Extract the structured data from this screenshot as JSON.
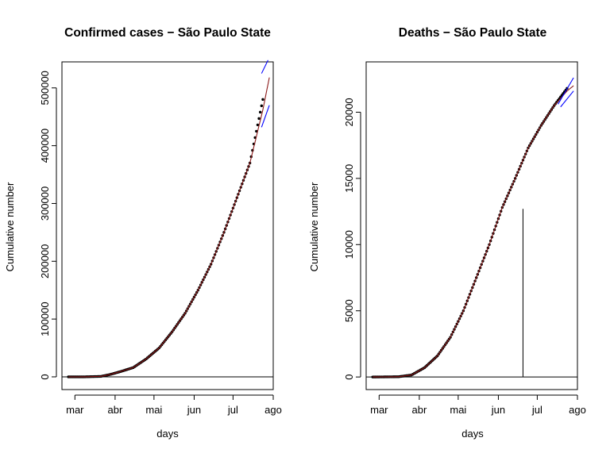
{
  "colors": {
    "observed": "#000000",
    "fit": "#8b1a1a",
    "band": "#0000ff",
    "axis": "#000000"
  },
  "chart_data": [
    {
      "id": "cases",
      "type": "scatter",
      "title": "Confirmed cases − São Paulo State",
      "xlabel": "days",
      "ylabel": "Cumulative number",
      "x_ticks": [
        "mar",
        "abr",
        "mai",
        "jun",
        "jul",
        "ago"
      ],
      "xlim": [
        -5,
        158
      ],
      "y_ticks": [
        "0",
        "100000",
        "200000",
        "300000",
        "400000",
        "500000"
      ],
      "y_tick_values": [
        0,
        100000,
        200000,
        300000,
        400000,
        500000
      ],
      "ylim": [
        -22000,
        545000
      ],
      "observed": {
        "day_start": 0,
        "day_end": 150,
        "values": [
          [
            0,
            1
          ],
          [
            12,
            50
          ],
          [
            25,
            800
          ],
          [
            32,
            4000
          ],
          [
            40,
            9000
          ],
          [
            50,
            16000
          ],
          [
            60,
            31000
          ],
          [
            70,
            50000
          ],
          [
            80,
            78000
          ],
          [
            90,
            110000
          ],
          [
            100,
            150000
          ],
          [
            110,
            195000
          ],
          [
            120,
            250000
          ],
          [
            130,
            310000
          ],
          [
            140,
            370000
          ],
          [
            150,
            480000
          ]
        ]
      },
      "fit": {
        "start": 0,
        "end": 155,
        "values": [
          [
            0,
            1
          ],
          [
            12,
            50
          ],
          [
            25,
            800
          ],
          [
            32,
            4000
          ],
          [
            40,
            9000
          ],
          [
            50,
            16000
          ],
          [
            60,
            31000
          ],
          [
            70,
            50000
          ],
          [
            80,
            78000
          ],
          [
            90,
            110000
          ],
          [
            100,
            150000
          ],
          [
            110,
            195000
          ],
          [
            120,
            250000
          ],
          [
            130,
            310000
          ],
          [
            140,
            370000
          ],
          [
            150,
            462000
          ],
          [
            155,
            518000
          ]
        ]
      },
      "upper_band": {
        "start": 149,
        "end": 154,
        "y0": 525000,
        "y1": 548000
      },
      "lower_band": {
        "start": 149,
        "end": 155,
        "y0": 432000,
        "y1": 470000
      },
      "reference_line": null,
      "grid": false
    },
    {
      "id": "deaths",
      "type": "scatter",
      "title": "Deaths − São Paulo State",
      "xlabel": "days",
      "ylabel": "Cumulative number",
      "x_ticks": [
        "mar",
        "abr",
        "mai",
        "jun",
        "jul",
        "ago"
      ],
      "xlim": [
        -5,
        158
      ],
      "y_ticks": [
        "0",
        "5000",
        "10000",
        "15000",
        "20000"
      ],
      "y_tick_values": [
        0,
        5000,
        10000,
        15000,
        20000
      ],
      "ylim": [
        -950,
        23800
      ],
      "observed": {
        "day_start": 0,
        "day_end": 150,
        "values": [
          [
            0,
            0
          ],
          [
            20,
            20
          ],
          [
            30,
            150
          ],
          [
            40,
            700
          ],
          [
            50,
            1600
          ],
          [
            60,
            3000
          ],
          [
            70,
            5000
          ],
          [
            80,
            7500
          ],
          [
            90,
            10000
          ],
          [
            100,
            12800
          ],
          [
            110,
            15000
          ],
          [
            120,
            17300
          ],
          [
            130,
            19000
          ],
          [
            140,
            20500
          ],
          [
            150,
            21800
          ]
        ]
      },
      "fit": {
        "start": 0,
        "end": 155,
        "values": [
          [
            0,
            0
          ],
          [
            20,
            20
          ],
          [
            30,
            150
          ],
          [
            40,
            700
          ],
          [
            50,
            1600
          ],
          [
            60,
            3000
          ],
          [
            70,
            5000
          ],
          [
            80,
            7500
          ],
          [
            90,
            10000
          ],
          [
            100,
            12800
          ],
          [
            110,
            15000
          ],
          [
            120,
            17300
          ],
          [
            130,
            19000
          ],
          [
            140,
            20500
          ],
          [
            150,
            21600
          ],
          [
            155,
            22000
          ]
        ]
      },
      "upper_band": {
        "start": 143,
        "end": 155,
        "y0": 20600,
        "y1": 22600
      },
      "lower_band": {
        "start": 145,
        "end": 155,
        "y0": 20400,
        "y1": 21600
      },
      "reference_line": {
        "x": 116,
        "y": 12700
      },
      "grid": false
    }
  ]
}
